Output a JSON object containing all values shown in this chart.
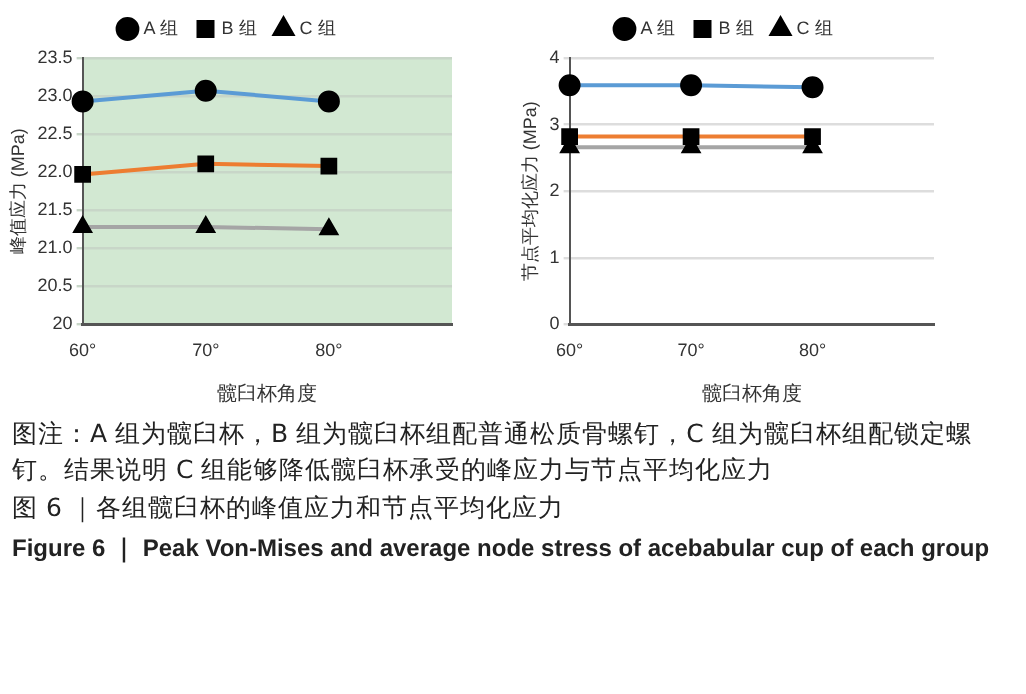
{
  "chart_data": [
    {
      "type": "line",
      "categories": [
        "60°",
        "70°",
        "80°",
        null
      ],
      "xlabel": "髋臼杯角度",
      "ylabel": "峰值应力 (MPa)",
      "ylim": [
        20,
        23.5
      ],
      "yticks": [
        {
          "value": 20,
          "label": "20"
        },
        {
          "value": 20.5,
          "label": "20.5"
        },
        {
          "value": 21,
          "label": "21.0"
        },
        {
          "value": 21.5,
          "label": "21.5"
        },
        {
          "value": 22,
          "label": "22.0"
        },
        {
          "value": 22.5,
          "label": "22.5"
        },
        {
          "value": 23,
          "label": "23.0"
        },
        {
          "value": 23.5,
          "label": "23.5"
        }
      ],
      "grid": "y",
      "legend": "top",
      "series": [
        {
          "name": "A 组",
          "color": "#5b9bd5",
          "marker": "circle",
          "values": [
            22.93,
            23.07,
            22.93,
            null
          ]
        },
        {
          "name": "B 组",
          "color": "#ed7d31",
          "marker": "square",
          "values": [
            21.97,
            22.11,
            22.08,
            null
          ]
        },
        {
          "name": "C 组",
          "color": "#a5a5a5",
          "marker": "triangle",
          "values": [
            21.28,
            21.28,
            21.25,
            null
          ]
        }
      ]
    },
    {
      "type": "line",
      "categories": [
        "60°",
        "70°",
        "80°",
        null
      ],
      "xlabel": "髋臼杯角度",
      "ylabel": "节点平均化应力 (MPa)",
      "ylim": [
        0,
        4
      ],
      "yticks": [
        0,
        1,
        2,
        3,
        4
      ],
      "grid": "y",
      "legend": "top",
      "series": [
        {
          "name": "A 组",
          "color": "#5b9bd5",
          "marker": "circle",
          "values": [
            3.59,
            3.59,
            3.56,
            null
          ]
        },
        {
          "name": "B 组",
          "color": "#ed7d31",
          "marker": "square",
          "values": [
            2.82,
            2.82,
            2.82,
            null
          ]
        },
        {
          "name": "C 组",
          "color": "#a5a5a5",
          "marker": "triangle",
          "values": [
            2.66,
            2.66,
            2.66,
            null
          ]
        }
      ]
    },
    {
      "type": "other",
      "annotations": [
        "图注：A 组为髋臼杯，B 组为髋臼杯组配普通松质骨螺钉，C 组为髋臼杯组配锁定螺钉。结果说明 C 组能够降低髋臼杯承受的峰应力与节点平均化应力"
      ],
      "title": "图 6 ｜各组髋臼杯的峰值应力和节点平均化应力",
      "subtitle": "Figure 6 ｜ Peak Von-Mises and average node  stress of acebabular cup of each group"
    }
  ]
}
